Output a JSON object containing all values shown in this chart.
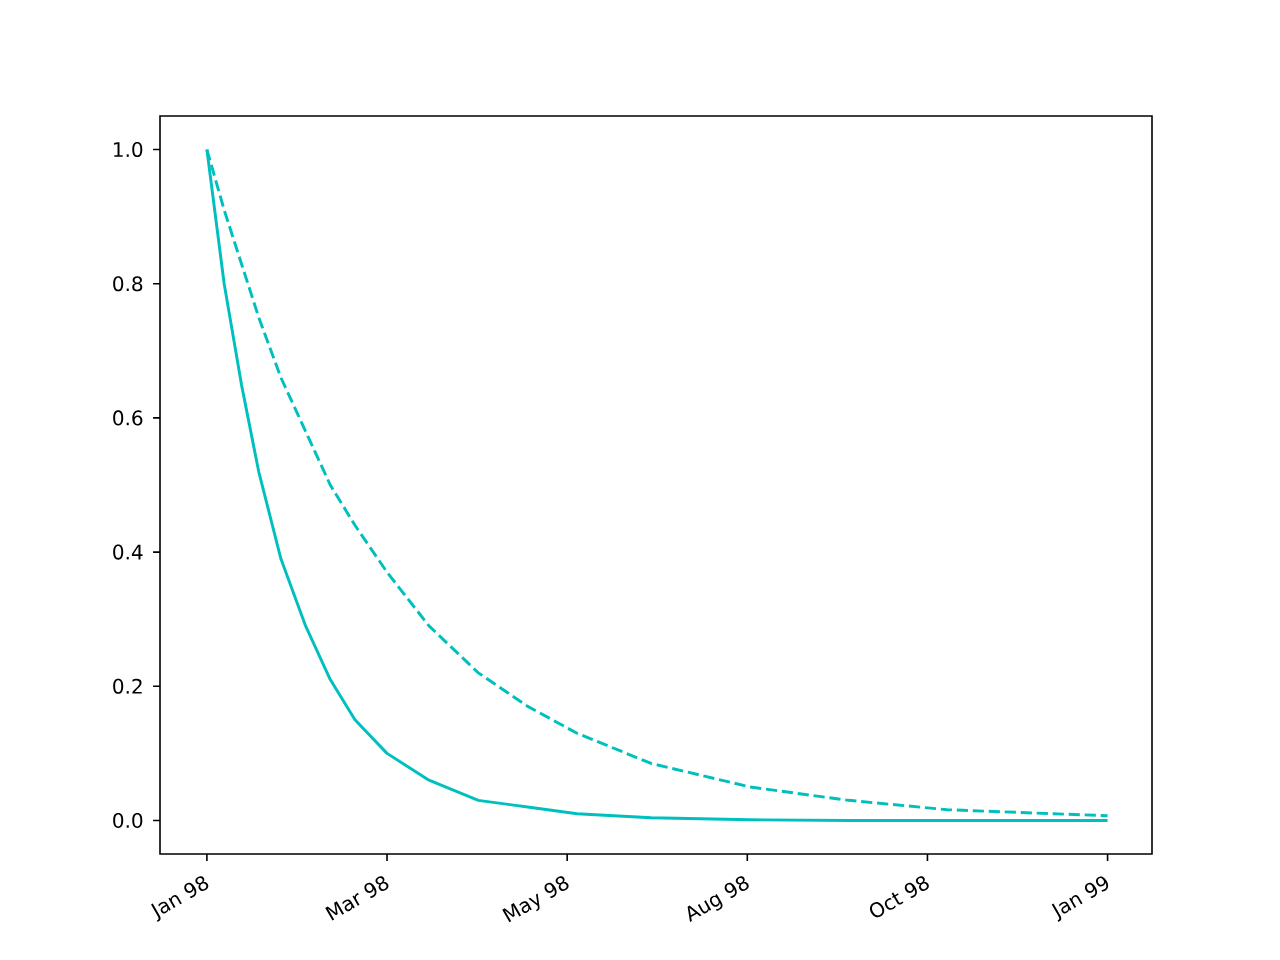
{
  "chart_data": {
    "type": "line",
    "x": [
      "1998-01-01",
      "1998-01-08",
      "1998-01-15",
      "1998-01-22",
      "1998-01-31",
      "1998-02-10",
      "1998-02-20",
      "1998-03-02",
      "1998-03-15",
      "1998-04-01",
      "1998-04-21",
      "1998-05-11",
      "1998-05-31",
      "1998-06-30",
      "1998-08-09",
      "1998-09-18",
      "1998-10-28",
      "1999-01-01"
    ],
    "series": [
      {
        "color": "#00bfbf",
        "line_style": "solid",
        "values": [
          1.0,
          0.8,
          0.65,
          0.52,
          0.39,
          0.29,
          0.21,
          0.15,
          0.1,
          0.06,
          0.03,
          0.02,
          0.01,
          0.004,
          0.001,
          0,
          0,
          0
        ]
      },
      {
        "color": "#00bfbf",
        "line_style": "dashed",
        "values": [
          1.0,
          0.91,
          0.83,
          0.75,
          0.66,
          0.58,
          0.5,
          0.44,
          0.37,
          0.29,
          0.22,
          0.17,
          0.13,
          0.085,
          0.05,
          0.03,
          0.016,
          0.007
        ]
      }
    ],
    "xlim": [
      "1997-12-13",
      "1999-01-19"
    ],
    "xticks": [
      {
        "value": "1998-01-01",
        "label": "Jan 98"
      },
      {
        "value": "1998-03-15",
        "label": "Mar 98"
      },
      {
        "value": "1998-05-27",
        "label": "May 98"
      },
      {
        "value": "1998-08-08",
        "label": "Aug 98"
      },
      {
        "value": "1998-10-20",
        "label": "Oct 98"
      },
      {
        "value": "1999-01-01",
        "label": "Jan 99"
      }
    ],
    "ylim": [
      -0.05,
      1.05
    ],
    "yticks": [
      {
        "value": 0,
        "label": "0.0"
      },
      {
        "value": 0.2,
        "label": "0.2"
      },
      {
        "value": 0.4,
        "label": "0.4"
      },
      {
        "value": 0.6,
        "label": "0.6"
      },
      {
        "value": 0.8,
        "label": "0.8"
      },
      {
        "value": 1.0,
        "label": "1.0"
      }
    ],
    "grid": false
  }
}
